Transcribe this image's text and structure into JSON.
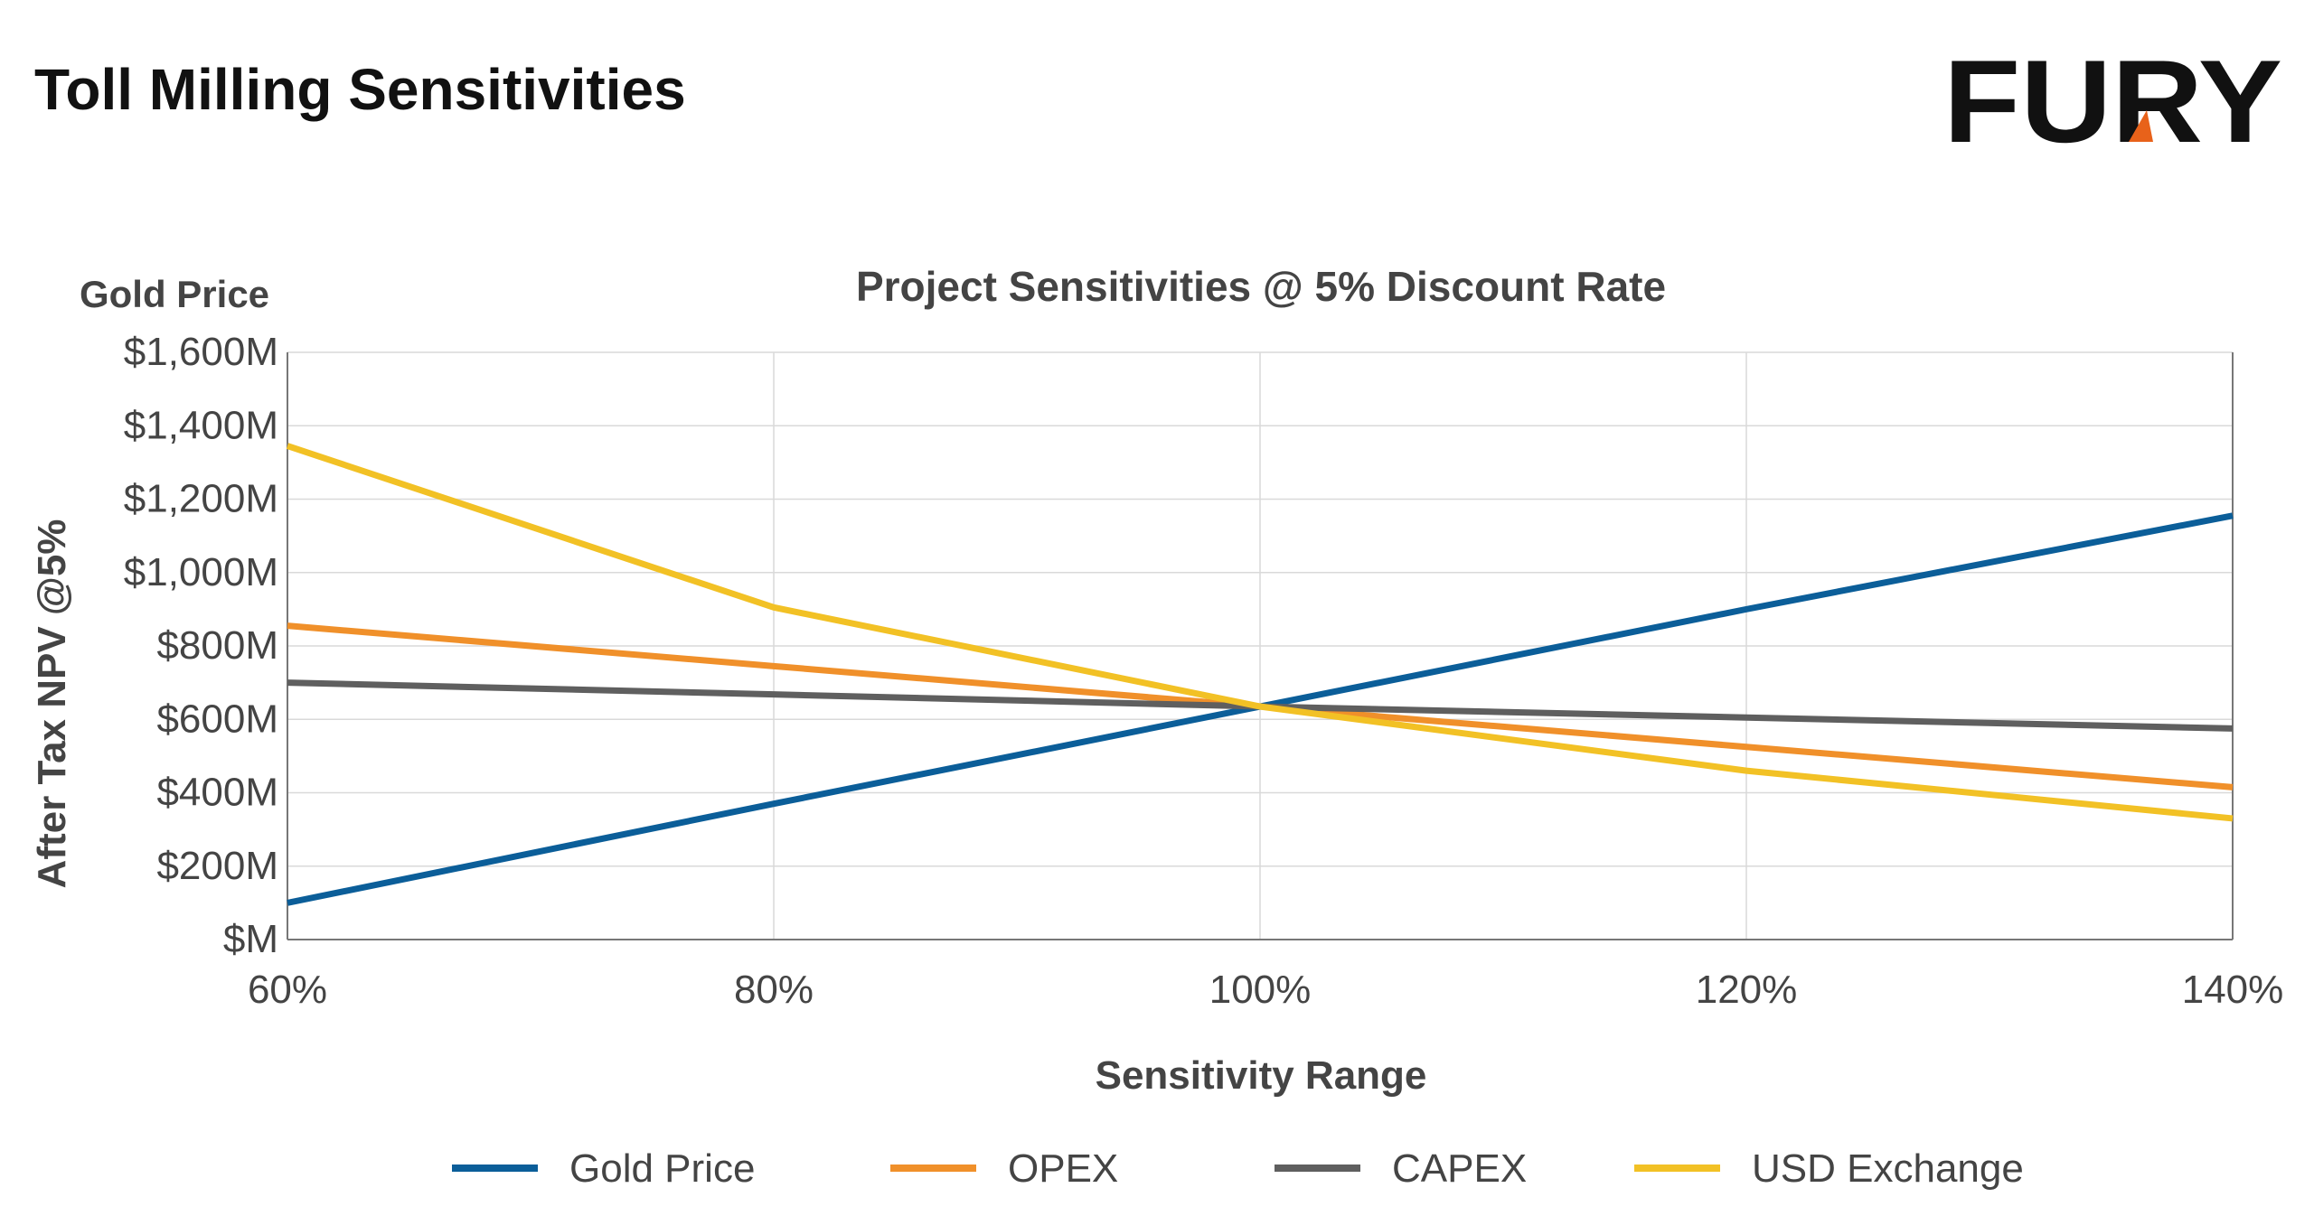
{
  "page": {
    "title": "Toll Milling Sensitivities",
    "logo_text": "FURY"
  },
  "colors": {
    "gold_price": "#0b5e99",
    "opex": "#f0902a",
    "capex": "#5f5f5f",
    "usd_exchange": "#f2c125",
    "logo_accent": "#e8621a"
  },
  "chart_data": {
    "type": "line",
    "title": "Project Sensitivities @ 5% Discount Rate",
    "corner_label": "Gold Price",
    "xlabel": "Sensitivity Range",
    "ylabel": "After Tax NPV @5%",
    "x": [
      60,
      80,
      100,
      120,
      140
    ],
    "xtick_labels": [
      "60%",
      "80%",
      "100%",
      "120%",
      "140%"
    ],
    "ylim": [
      0,
      1600
    ],
    "yticks": [
      0,
      200,
      400,
      600,
      800,
      1000,
      1200,
      1400,
      1600
    ],
    "ytick_labels": [
      "$M",
      "$200M",
      "$400M",
      "$600M",
      "$800M",
      "$1,000M",
      "$1,200M",
      "$1,400M",
      "$1,600M"
    ],
    "grid": true,
    "legend_position": "bottom",
    "series": [
      {
        "name": "Gold Price",
        "color": "#0b5e99",
        "values": [
          100,
          370,
          635,
          900,
          1155
        ]
      },
      {
        "name": "OPEX",
        "color": "#f0902a",
        "values": [
          855,
          745,
          635,
          525,
          415
        ]
      },
      {
        "name": "CAPEX",
        "color": "#5f5f5f",
        "values": [
          700,
          668,
          635,
          605,
          575
        ]
      },
      {
        "name": "USD Exchange",
        "color": "#f2c125",
        "values": [
          1345,
          905,
          635,
          460,
          330
        ]
      }
    ]
  }
}
